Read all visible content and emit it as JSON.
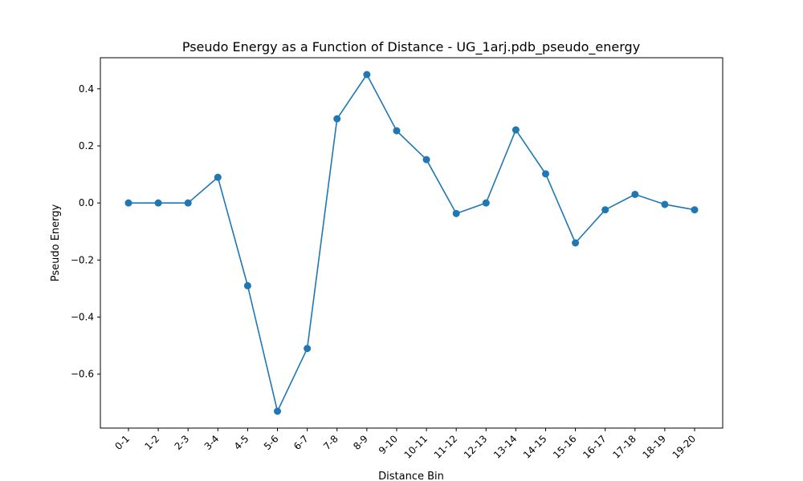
{
  "chart_data": {
    "type": "line",
    "title": "Pseudo Energy as a Function of Distance - UG_1arj.pdb_pseudo_energy",
    "xlabel": "Distance Bin",
    "ylabel": "Pseudo Energy",
    "categories": [
      "0-1",
      "1-2",
      "2-3",
      "3-4",
      "4-5",
      "5-6",
      "6-7",
      "7-8",
      "8-9",
      "9-10",
      "10-11",
      "11-12",
      "12-13",
      "13-14",
      "14-15",
      "15-16",
      "16-17",
      "17-18",
      "18-19",
      "19-20"
    ],
    "values": [
      0.0,
      0.0,
      0.0,
      0.09,
      -0.29,
      -0.73,
      -0.51,
      0.295,
      0.45,
      0.253,
      0.152,
      -0.037,
      0.0,
      0.256,
      0.102,
      -0.14,
      -0.024,
      0.03,
      -0.005,
      -0.024
    ],
    "yticks": [
      -0.6,
      -0.4,
      -0.2,
      0.0,
      0.2,
      0.4
    ],
    "ytick_labels": [
      "−0.6",
      "−0.4",
      "−0.2",
      "0.0",
      "0.2",
      "0.4"
    ],
    "ylim": [
      -0.789,
      0.509
    ],
    "grid": false,
    "line_color": "#1f77b4",
    "marker": "circle"
  }
}
